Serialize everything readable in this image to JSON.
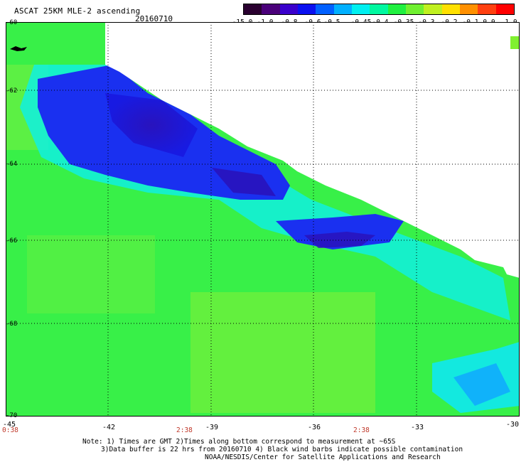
{
  "header": {
    "title": "ASCAT 25KM MLE-2 ascending",
    "date": "20160710"
  },
  "colorbar": {
    "labels": [
      "-15.0",
      "-1.0",
      "-0.8",
      "-0.6",
      "-0.5",
      "-0.45",
      "-0.4",
      "-0.35",
      "-0.3",
      "-0.2",
      "-0.1",
      "0.0",
      "1.0"
    ],
    "colors": [
      "#2a0030",
      "#4a007a",
      "#3a00cc",
      "#0a10f0",
      "#0060ff",
      "#00b0ff",
      "#00f0f0",
      "#00f8a0",
      "#20f040",
      "#70f030",
      "#c0f020",
      "#ffe000",
      "#ff9000",
      "#ff4010",
      "#ff0000"
    ]
  },
  "map": {
    "lat_labels": [
      "-60",
      "-62",
      "-64",
      "-66",
      "-68",
      "-70"
    ],
    "lon_labels": [
      "-45",
      "-42",
      "-39",
      "-36",
      "-33",
      "-30"
    ],
    "time_labels": [
      "0:38",
      "2:38",
      "2:38"
    ]
  },
  "note": {
    "line1": "Note: 1) Times are GMT 2)Times along bottom correspond to measurement at ~65S",
    "line2": "3)Data buffer is 22 hrs from 20160710 4) Black wind barbs indicate possible contamination",
    "line3": "NOAA/NESDIS/Center for Satellite Applications and Research"
  }
}
